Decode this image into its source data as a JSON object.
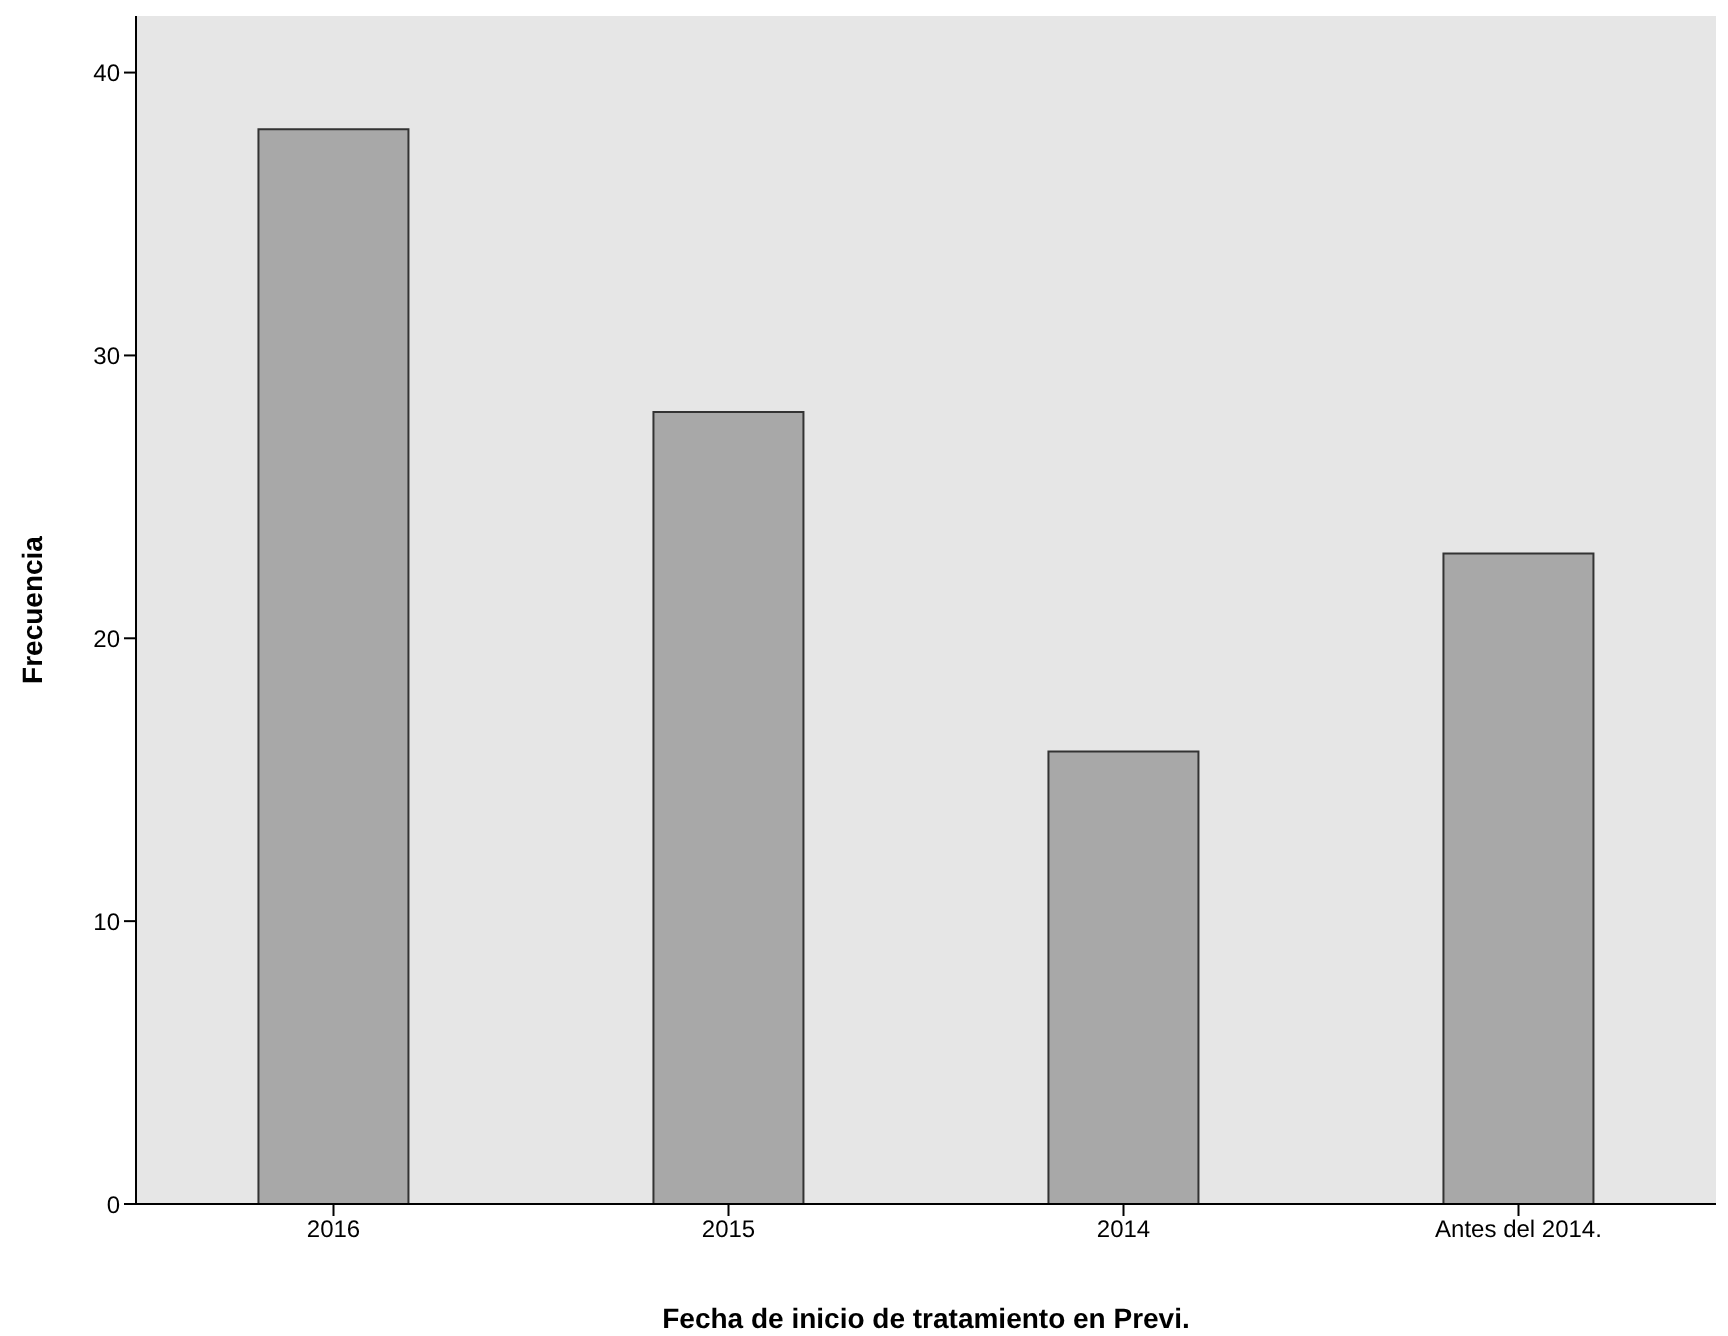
{
  "chart_data": {
    "type": "bar",
    "xlabel": "Fecha de inicio de tratamiento en Previ.",
    "ylabel": "Frecuencia",
    "categories": [
      "2016",
      "2015",
      "2014",
      "Antes del 2014."
    ],
    "values": [
      38,
      28,
      16,
      23
    ],
    "color": "#a8a8a8",
    "ylim": [
      0,
      42
    ],
    "yticks": [
      0,
      10,
      20,
      30,
      40
    ],
    "grid": false
  }
}
